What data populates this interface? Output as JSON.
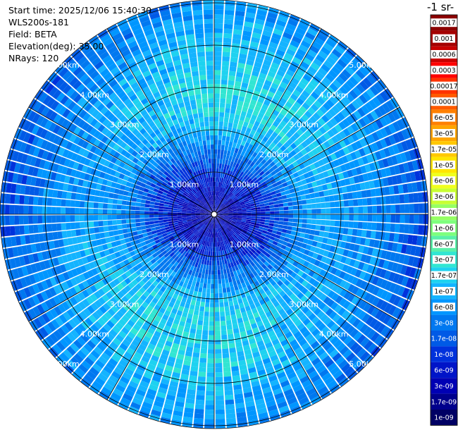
{
  "header": {
    "start_time": "Start time: 2025/12/06 15:40:30",
    "instrument": "WLS200s-181",
    "field": "Field: BETA",
    "elevation": "Elevation(deg): 35.00",
    "nrays": "NRays: 120"
  },
  "colorbar": {
    "title": "-1 sr-",
    "labels": [
      "0.0017",
      "0.001",
      "0.0006",
      "0.0003",
      "0.00017",
      "0.0001",
      "6e-05",
      "3e-05",
      "1.7e-05",
      "1e-05",
      "6e-06",
      "3e-06",
      "1.7e-06",
      "1e-06",
      "6e-07",
      "3e-07",
      "1.7e-07",
      "1e-07",
      "6e-08",
      "3e-08",
      "1.7e-08",
      "1e-08",
      "6e-09",
      "3e-09",
      "1.7e-09",
      "1e-09"
    ],
    "colors": [
      "#8b0000",
      "#a40000",
      "#c80000",
      "#ff0000",
      "#ff3300",
      "#ff5a00",
      "#ff8000",
      "#ffa500",
      "#ffc800",
      "#ffe600",
      "#f0ff1e",
      "#c8ff32",
      "#96ff64",
      "#7dff7d",
      "#5af0aa",
      "#32e6d2",
      "#1ed2f0",
      "#14b4ff",
      "#0096ff",
      "#0078f0",
      "#005ae6",
      "#0032dc",
      "#0014c8",
      "#0000b4",
      "#00008c",
      "#000064"
    ],
    "white_text_from_index": 19
  },
  "chart_data": {
    "type": "heatmap",
    "projection": "polar PPI scan",
    "field": "BETA",
    "nrays": 120,
    "elevation_deg": 35.0,
    "range_rings_km": [
      1.0,
      2.0,
      3.0,
      4.0,
      5.0
    ],
    "ring_labels": [
      "1.00km",
      "2.00km",
      "3.00km",
      "4.00km",
      "5.00km"
    ],
    "max_range_km": 5.0,
    "spoke_angles_deg": [
      0,
      30,
      60,
      90,
      120,
      150,
      180,
      210,
      240,
      270,
      300,
      330
    ],
    "colorscale": "log10 backscatter, 1e-09 to 0.0017",
    "range_profile_log10": [
      {
        "range_km": 0.0,
        "log10_beta": -8.4
      },
      {
        "range_km": 0.5,
        "log10_beta": -8.3
      },
      {
        "range_km": 1.0,
        "log10_beta": -8.0
      },
      {
        "range_km": 1.5,
        "log10_beta": -7.6
      },
      {
        "range_km": 2.0,
        "log10_beta": -7.1
      },
      {
        "range_km": 2.5,
        "log10_beta": -6.9
      },
      {
        "range_km": 3.0,
        "log10_beta": -6.9
      },
      {
        "range_km": 3.5,
        "log10_beta": -7.0
      },
      {
        "range_km": 4.0,
        "log10_beta": -7.1
      },
      {
        "range_km": 4.5,
        "log10_beta": -7.3
      },
      {
        "range_km": 5.0,
        "log10_beta": -7.5
      }
    ]
  }
}
